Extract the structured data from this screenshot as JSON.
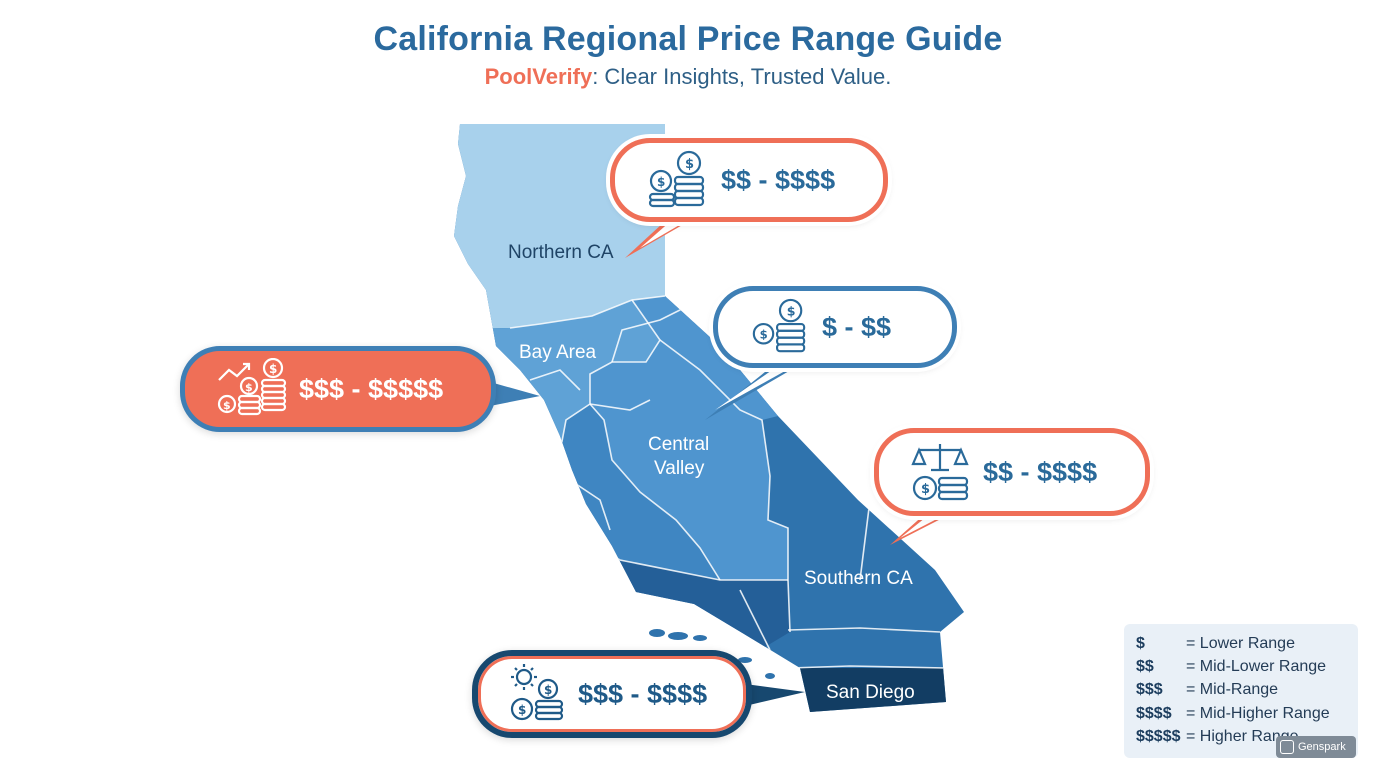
{
  "header": {
    "title": "California Regional Price Range Guide",
    "brand": "PoolVerify",
    "tagline": ": Clear Insights, Trusted Value."
  },
  "regions": {
    "northern": "Northern CA",
    "bay_area": "Bay Area",
    "central_line1": "Central",
    "central_line2": "Valley",
    "southern": "Southern CA",
    "san_diego": "San Diego"
  },
  "callouts": {
    "northern": {
      "price": "$$ - $$$$",
      "icon": "coins-stack-icon"
    },
    "central": {
      "price": "$ - $$",
      "icon": "coins-stack-icon"
    },
    "bay_area": {
      "price": "$$$ - $$$$$",
      "icon": "rising-coins-icon"
    },
    "southern": {
      "price": "$$ - $$$$",
      "icon": "scale-coins-icon"
    },
    "san_diego": {
      "price": "$$$ - $$$$",
      "icon": "sun-coins-icon"
    }
  },
  "legend": {
    "rows": [
      {
        "symbol": "$",
        "meaning": "= Lower Range"
      },
      {
        "symbol": "$$",
        "meaning": "= Mid-Lower Range"
      },
      {
        "symbol": "$$$",
        "meaning": "= Mid-Range"
      },
      {
        "symbol": "$$$$",
        "meaning": "= Mid-Higher Range"
      },
      {
        "symbol": "$$$$$",
        "meaning": "= Higher Range"
      }
    ]
  },
  "watermark": "Genspark",
  "colors": {
    "title": "#2b6a9e",
    "brand": "#ef6f57",
    "northern": "#a8d1ec",
    "bay_area": "#5fa2d6",
    "central": "#4f95cf",
    "southern": "#2f73ad",
    "coastal_south": "#245f98",
    "san_diego": "#123d63"
  }
}
